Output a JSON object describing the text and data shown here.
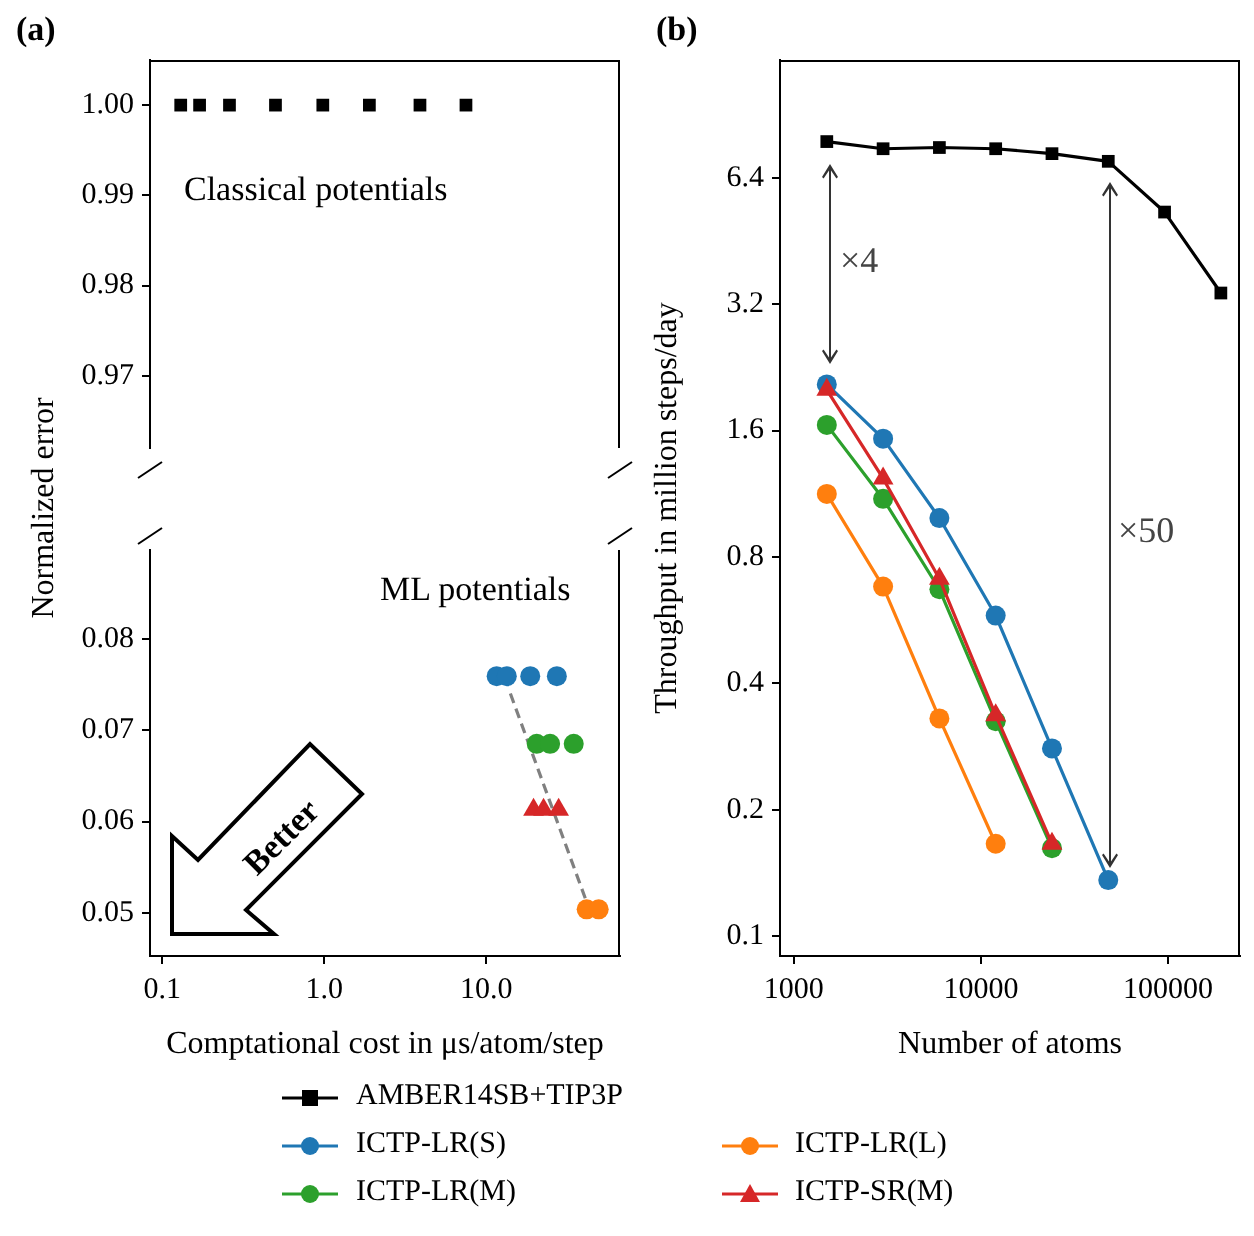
{
  "chart_data": [
    {
      "type": "scatter",
      "title": "(a)",
      "ylabel": "Normalized error",
      "xlim": [
        0.084,
        67
      ],
      "ylim": [
        0.962,
        1.005
      ],
      "yticks": [
        0.97,
        0.98,
        0.99,
        {
          "value": 1,
          "label": "1.00"
        }
      ],
      "log": "x",
      "grid": false,
      "tick_labels": "y",
      "annotations": [
        "Classical potentials"
      ],
      "series": [
        {
          "color": "#000000",
          "marker": "square",
          "x": [
            0.13,
            0.17,
            0.26,
            0.5,
            0.98,
            1.9,
            3.9,
            7.5
          ],
          "values": [
            1,
            1,
            1,
            1,
            1,
            1,
            1,
            1
          ]
        }
      ]
    },
    {
      "type": "scatter",
      "xlabel": "Comptational cost in μs/atom/step",
      "xlim": [
        0.084,
        67
      ],
      "xticks": [
        0.1,
        {
          "value": 1,
          "label": "1.0"
        },
        {
          "value": 10,
          "label": "10.0"
        }
      ],
      "ylim": [
        0.0453,
        0.0897
      ],
      "yticks": [
        0.05,
        0.06,
        0.07,
        0.08
      ],
      "log": "x",
      "grid": false,
      "annotations": [
        "ML potentials",
        "Better"
      ],
      "series": [
        {
          "type": "line",
          "color": "#808080",
          "marker": "none",
          "line_style": "dashed",
          "x": [
            14.1,
            41.5
          ],
          "values": [
            0.074,
            0.0513
          ]
        },
        {
          "color": "#1f77b4",
          "marker": "circle",
          "x": [
            11.6,
            13.4,
            18.7,
            27.3
          ],
          "values": [
            0.0759,
            0.0759,
            0.0759,
            0.0759
          ]
        },
        {
          "color": "#2ca02c",
          "marker": "circle",
          "x": [
            20.5,
            24.8,
            34.7
          ],
          "values": [
            0.0685,
            0.0685,
            0.0685
          ]
        },
        {
          "color": "#d62728",
          "marker": "triangle",
          "x": [
            19.6,
            22.6,
            28
          ],
          "values": [
            0.0613,
            0.0613,
            0.0613
          ]
        },
        {
          "color": "#ff7f0e",
          "marker": "circle",
          "x": [
            41.7,
            49.5
          ],
          "values": [
            0.0504,
            0.0504
          ]
        }
      ]
    },
    {
      "type": "line",
      "title": "(b)",
      "xlabel": "Number of atoms",
      "ylabel": "Throughput in million steps/day",
      "xlim": [
        843,
        243000
      ],
      "xticks": [
        1000,
        10000,
        100000
      ],
      "ylim": [
        0.0897,
        12.2
      ],
      "yticks": [
        0.1,
        0.2,
        0.4,
        0.8,
        1.6,
        3.2,
        6.4
      ],
      "log": "xy",
      "grid": false,
      "legend": "bottom",
      "annotations": [
        "×4",
        "×50"
      ],
      "series": [
        {
          "name": "AMBER14SB+TIP3P",
          "color": "#000000",
          "marker": "square",
          "x": [
            1500,
            3000,
            6000,
            12000,
            24000,
            48000,
            96000,
            192000
          ],
          "values": [
            7.8,
            7.5,
            7.55,
            7.5,
            7.3,
            7.0,
            5.3,
            3.4
          ]
        },
        {
          "name": "ICTP-LR(S)",
          "color": "#1f77b4",
          "marker": "circle",
          "x": [
            1500,
            3000,
            6000,
            12000,
            24000,
            48000
          ],
          "values": [
            2.06,
            1.53,
            0.99,
            0.58,
            0.28,
            0.136
          ]
        },
        {
          "name": "ICTP-LR(M)",
          "color": "#2ca02c",
          "marker": "circle",
          "x": [
            1500,
            3000,
            6000,
            12000,
            24000
          ],
          "values": [
            1.65,
            1.1,
            0.67,
            0.325,
            0.162
          ]
        },
        {
          "name": "ICTP-LR(L)",
          "color": "#ff7f0e",
          "marker": "circle",
          "x": [
            1500,
            3000,
            6000,
            12000
          ],
          "values": [
            1.13,
            0.68,
            0.33,
            0.166
          ]
        },
        {
          "name": "ICTP-SR(M)",
          "color": "#d62728",
          "marker": "triangle",
          "x": [
            1500,
            3000,
            6000,
            12000,
            24000
          ],
          "values": [
            2.0,
            1.23,
            0.71,
            0.336,
            0.166
          ]
        }
      ]
    }
  ]
}
